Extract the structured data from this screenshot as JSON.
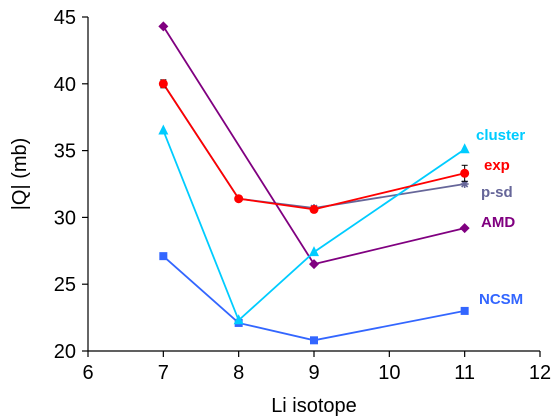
{
  "chart_data": {
    "type": "line",
    "xlabel": "Li isotope",
    "ylabel": "|Q| (mb)",
    "xlim": [
      6,
      12
    ],
    "ylim": [
      20,
      45
    ],
    "xticks": [
      6,
      7,
      8,
      9,
      10,
      11,
      12
    ],
    "yticks": [
      20,
      25,
      30,
      35,
      40,
      45
    ],
    "grid": false,
    "series": [
      {
        "name": "cluster",
        "color": "#00ccff",
        "marker": "triangle",
        "x": [
          7,
          8,
          9,
          11
        ],
        "y": [
          36.5,
          22.3,
          27.4,
          35.1
        ]
      },
      {
        "name": "exp",
        "color": "#ff0000",
        "marker": "circle",
        "x": [
          7,
          8,
          9,
          11
        ],
        "y": [
          40.0,
          31.4,
          30.6,
          33.3
        ],
        "error": [
          0.3,
          0.0,
          0.2,
          0.6
        ]
      },
      {
        "name": "p-sd",
        "color": "#666699",
        "marker": "star",
        "x": [
          7,
          8,
          9,
          11
        ],
        "y": [
          40.0,
          31.4,
          30.7,
          32.5
        ]
      },
      {
        "name": "AMD",
        "color": "#800080",
        "marker": "diamond",
        "x": [
          7,
          9,
          11
        ],
        "y": [
          44.3,
          26.5,
          29.2
        ]
      },
      {
        "name": "NCSM",
        "color": "#3366ff",
        "marker": "square",
        "x": [
          7,
          8,
          9,
          11
        ],
        "y": [
          27.1,
          22.1,
          20.8,
          23.0
        ]
      }
    ]
  }
}
